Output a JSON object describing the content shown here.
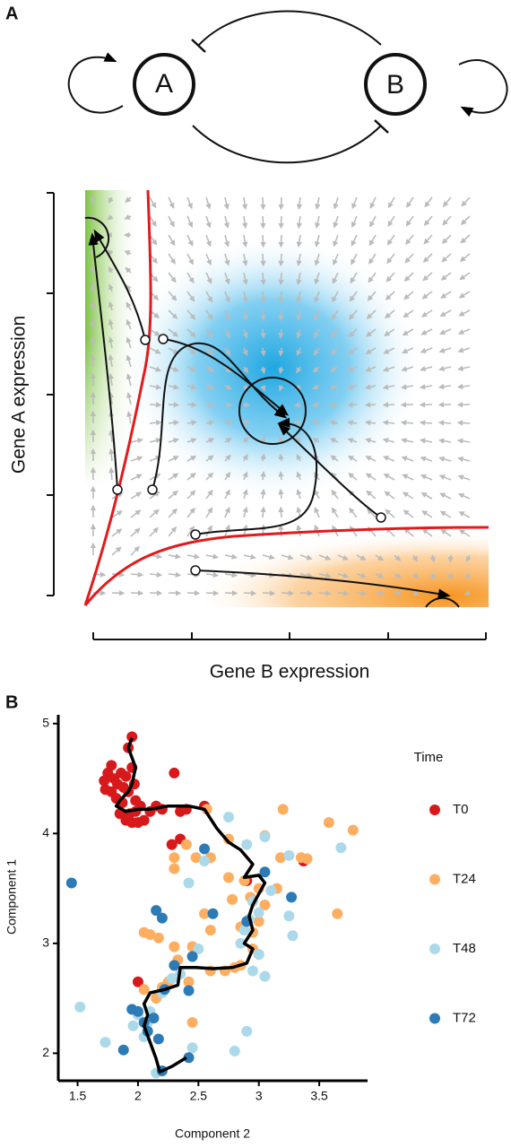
{
  "panel_a": {
    "label": "A",
    "nodes": [
      {
        "label": "A"
      },
      {
        "label": "B"
      }
    ],
    "y_label": "Gene A expression",
    "x_label": "Gene B expression"
  },
  "chart_data": {
    "type": "scatter",
    "panel_label": "B",
    "legend_title": "Time",
    "x_label": "Component 2",
    "y_label": "Component 1",
    "xlim": [
      1.34,
      3.9
    ],
    "ylim": [
      1.75,
      5.08
    ],
    "xticks": [
      1.5,
      2.0,
      2.5,
      3.0,
      3.5
    ],
    "yticks": [
      2,
      3,
      4,
      5
    ],
    "series": [
      {
        "name": "T0",
        "color": "#d7191c",
        "x": [
          1.95,
          1.92,
          1.72,
          1.75,
          1.78,
          1.8,
          1.83,
          1.86,
          1.9,
          1.95,
          1.97,
          1.73,
          1.78,
          1.82,
          1.87,
          1.92,
          1.98,
          2.02,
          1.85,
          1.9,
          1.95,
          2.0,
          2.05,
          1.88,
          1.93,
          2.1,
          2.15,
          2.2,
          2.3,
          2.35,
          2.4,
          2.55,
          2.28,
          2.35,
          2.0,
          2.9,
          3.37,
          1.98
        ],
        "y": [
          4.88,
          4.78,
          4.48,
          4.55,
          4.62,
          4.5,
          4.45,
          4.55,
          4.52,
          4.6,
          4.45,
          4.4,
          4.38,
          4.32,
          4.28,
          4.38,
          4.3,
          4.25,
          4.18,
          4.12,
          4.1,
          4.1,
          4.12,
          4.42,
          4.18,
          4.2,
          4.25,
          4.22,
          4.55,
          4.2,
          4.22,
          4.25,
          3.9,
          3.95,
          2.65,
          3.57,
          3.75,
          4.2
        ]
      },
      {
        "name": "T24",
        "color": "#fdae61",
        "x": [
          2.57,
          3.2,
          3.58,
          3.78,
          3.05,
          2.75,
          2.4,
          2.3,
          2.3,
          2.48,
          2.6,
          3.18,
          3.35,
          3.4,
          2.75,
          2.88,
          2.78,
          2.93,
          3.0,
          3.15,
          3.05,
          2.55,
          3.65,
          2.6,
          3.0,
          2.85,
          2.95,
          2.3,
          2.45,
          2.05,
          2.1,
          2.17,
          2.95,
          3.0,
          2.85,
          2.8,
          2.72,
          2.6,
          2.33,
          2.25,
          2.42,
          2.2,
          2.05,
          2.45,
          2.15
        ],
        "y": [
          4.22,
          4.22,
          4.1,
          4.03,
          3.98,
          3.95,
          3.9,
          3.78,
          3.68,
          3.78,
          3.78,
          3.78,
          3.78,
          3.77,
          3.6,
          3.57,
          3.4,
          3.42,
          3.5,
          3.5,
          3.35,
          3.27,
          3.27,
          3.12,
          3.2,
          3.15,
          3.1,
          2.97,
          2.97,
          3.1,
          3.08,
          3.05,
          2.95,
          2.9,
          2.8,
          2.78,
          2.75,
          2.75,
          2.85,
          2.65,
          2.65,
          2.6,
          2.58,
          2.28,
          2.5
        ]
      },
      {
        "name": "T48",
        "color": "#abd9e9",
        "x": [
          2.75,
          3.05,
          2.9,
          3.25,
          3.68,
          2.55,
          2.42,
          3.1,
          2.95,
          3.0,
          2.92,
          3.25,
          3.28,
          2.88,
          2.5,
          2.85,
          3.0,
          2.95,
          3.05,
          2.35,
          2.28,
          2.2,
          2.0,
          2.08,
          2.05,
          1.96,
          1.52,
          1.73,
          2.15,
          2.45,
          2.8,
          2.9,
          2.1
        ],
        "y": [
          4.15,
          3.97,
          3.9,
          3.8,
          3.87,
          3.75,
          3.55,
          3.48,
          3.38,
          3.28,
          3.22,
          3.25,
          3.07,
          3.12,
          2.95,
          3.0,
          2.9,
          2.75,
          2.7,
          2.72,
          2.68,
          2.55,
          2.35,
          2.28,
          2.15,
          2.25,
          2.42,
          2.1,
          1.82,
          2.05,
          2.02,
          2.2,
          2.38
        ]
      },
      {
        "name": "T72",
        "color": "#2c7bb6",
        "x": [
          1.45,
          2.55,
          2.62,
          2.15,
          2.2,
          3.27,
          3.05,
          2.9,
          2.45,
          2.3,
          2.22,
          2.42,
          1.95,
          2.0,
          2.13,
          2.05,
          2.17,
          1.88,
          2.42,
          2.2,
          2.08
        ],
        "y": [
          3.55,
          3.86,
          3.27,
          3.3,
          3.23,
          3.42,
          3.65,
          3.2,
          2.88,
          2.8,
          2.58,
          2.57,
          2.4,
          2.38,
          2.32,
          2.28,
          2.13,
          2.03,
          1.96,
          1.84,
          2.2
        ]
      }
    ],
    "trajectory": {
      "color": "#000000",
      "x": [
        1.95,
        1.92,
        1.98,
        1.95,
        1.92,
        1.85,
        1.82,
        1.9,
        2.0,
        2.1,
        2.25,
        2.42,
        2.55,
        2.65,
        2.75,
        2.85,
        2.95,
        2.88,
        3.0,
        3.05,
        3.0,
        2.95,
        2.92,
        2.95,
        2.88,
        2.95,
        2.9,
        2.78,
        2.62,
        2.48,
        2.35,
        2.33,
        2.22,
        2.1,
        2.05,
        2.08,
        2.05,
        2.1,
        2.15,
        2.18,
        2.28,
        2.4
      ],
      "y": [
        4.87,
        4.78,
        4.6,
        4.45,
        4.38,
        4.3,
        4.25,
        4.2,
        4.22,
        4.22,
        4.25,
        4.25,
        4.22,
        4.05,
        3.92,
        3.85,
        3.72,
        3.6,
        3.62,
        3.55,
        3.45,
        3.35,
        3.25,
        3.12,
        3.0,
        2.95,
        2.82,
        2.78,
        2.77,
        2.78,
        2.78,
        2.62,
        2.58,
        2.55,
        2.45,
        2.35,
        2.25,
        2.1,
        1.95,
        1.83,
        1.88,
        1.96
      ]
    }
  }
}
